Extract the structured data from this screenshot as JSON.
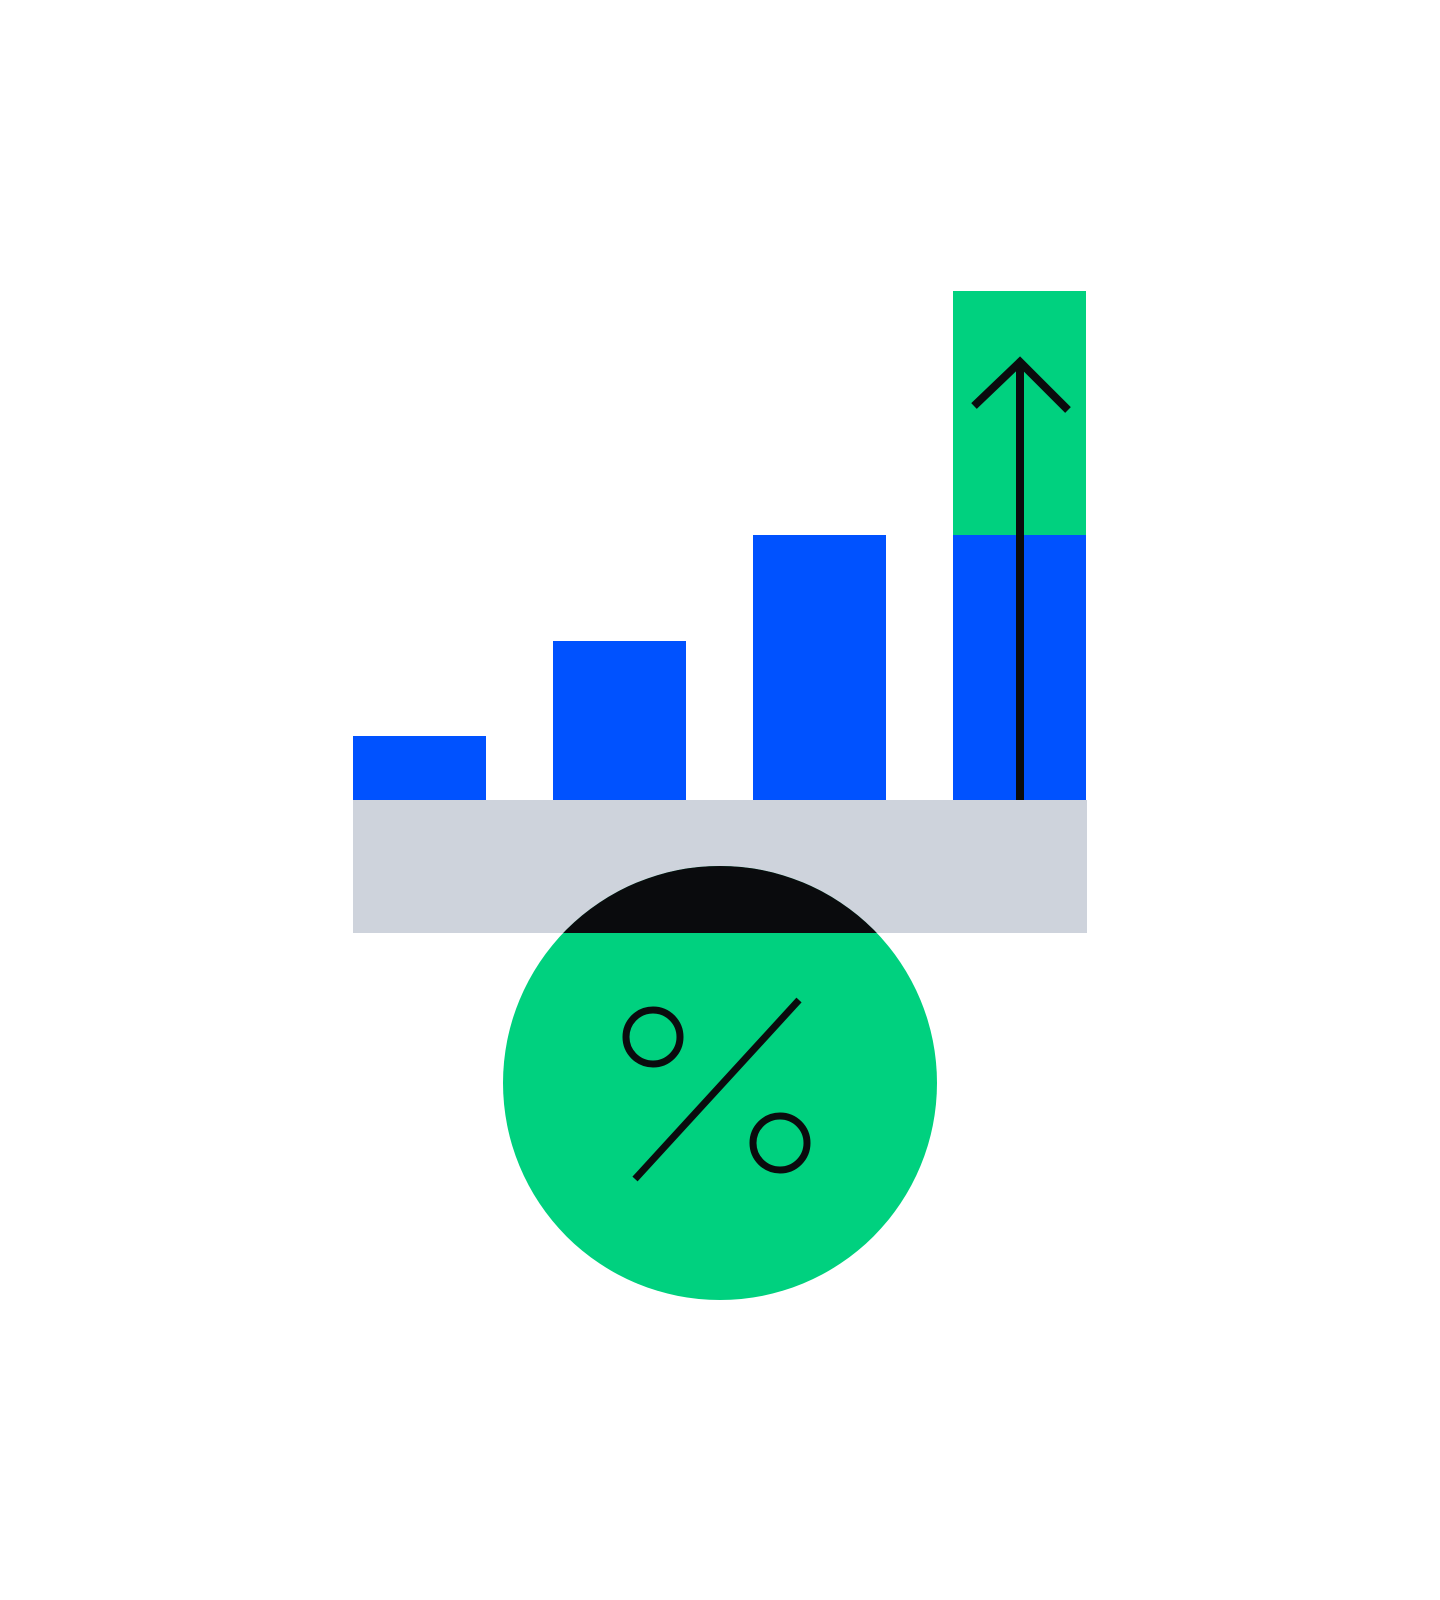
{
  "illustration": {
    "icons": {
      "bars": "bar-chart-icon",
      "arrow": "arrow-up-icon",
      "percent": "percent-icon",
      "base": "platform-icon"
    },
    "bars": [
      {
        "level": 0.12,
        "color": "#0052FF"
      },
      {
        "level": 0.3,
        "color": "#0052FF"
      },
      {
        "level": 0.5,
        "color": "#0052FF"
      },
      {
        "level": 0.5,
        "color": "#0052FF",
        "extension_level": 0.46,
        "extension_color": "#00D17F"
      }
    ],
    "colors": {
      "background": "#FFFFFF",
      "blue": "#0052FF",
      "green": "#00D17F",
      "platform": "#CED3DC",
      "ink": "#0A0B0D"
    }
  }
}
